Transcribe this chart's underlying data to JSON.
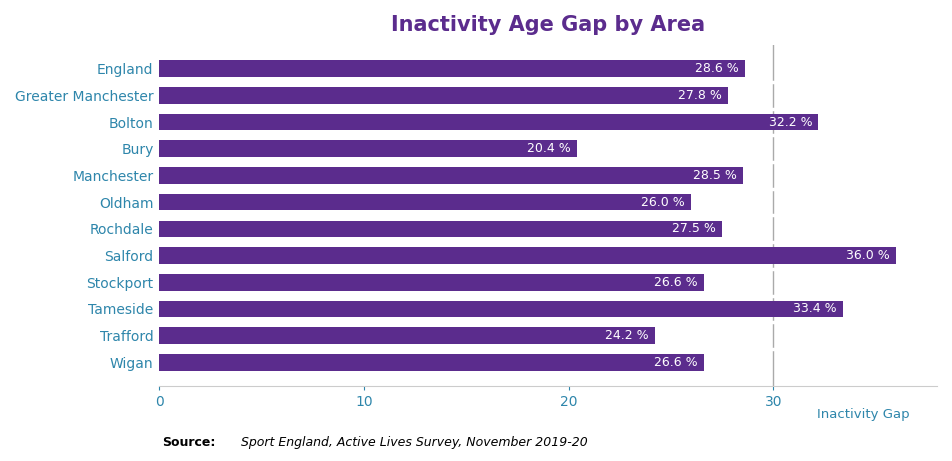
{
  "title": "Inactivity Age Gap by Area",
  "categories": [
    "England",
    "Greater Manchester",
    "Bolton",
    "Bury",
    "Manchester",
    "Oldham",
    "Rochdale",
    "Salford",
    "Stockport",
    "Tameside",
    "Trafford",
    "Wigan"
  ],
  "values": [
    28.6,
    27.8,
    32.2,
    20.4,
    28.5,
    26.0,
    27.5,
    36.0,
    26.6,
    33.4,
    24.2,
    26.6
  ],
  "labels": [
    "28.6 %",
    "27.8 %",
    "32.2 %",
    "20.4 %",
    "28.5 %",
    "26.0 %",
    "27.5 %",
    "36.0 %",
    "26.6 %",
    "33.4 %",
    "24.2 %",
    "26.6 %"
  ],
  "bar_color": "#5B2C8D",
  "title_color": "#5B2C8D",
  "label_color": "#FFFFFF",
  "ylabel_color": "#2E86AB",
  "xlabel_color": "#2E86AB",
  "vline_x": 30,
  "vline_color": "#AAAAAA",
  "xlabel": "Inactivity Gap",
  "xlim": [
    0,
    38
  ],
  "xticks": [
    0,
    10,
    20,
    30
  ],
  "source_bold": "Source:",
  "source_italic": "  Sport England, Active Lives Survey, November 2019-20",
  "background_color": "#FFFFFF",
  "title_fontsize": 15,
  "label_fontsize": 9,
  "tick_fontsize": 10,
  "bar_height": 0.62
}
